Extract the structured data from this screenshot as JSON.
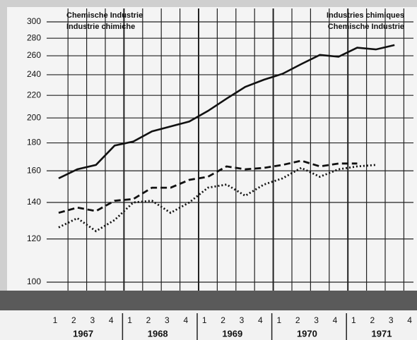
{
  "chart_data": {
    "type": "line",
    "titles": {
      "left": [
        "Chemische Industrie",
        "Industrie chimiche"
      ],
      "right": [
        "Industries chimiques",
        "Chemische Industrie"
      ]
    },
    "categories": [
      "1",
      "2",
      "3",
      "4",
      "1",
      "2",
      "3",
      "4",
      "1",
      "2",
      "3",
      "4",
      "1",
      "2",
      "3",
      "4",
      "1",
      "2",
      "3",
      "4"
    ],
    "years": [
      "1967",
      "1968",
      "1969",
      "1970",
      "1971"
    ],
    "log_scale": true,
    "grid": true,
    "ylim": [
      100,
      300
    ],
    "yticks": [
      100,
      120,
      140,
      160,
      180,
      200,
      220,
      240,
      260,
      280,
      300
    ],
    "series": [
      {
        "color": "#111111",
        "style": "solid",
        "values": [
          155,
          161,
          164,
          178,
          181,
          189,
          193,
          197,
          206,
          217,
          228,
          235,
          241,
          251,
          261,
          259,
          269,
          267,
          272,
          null
        ]
      },
      {
        "color": "#111111",
        "style": "dashed",
        "values": [
          134,
          137,
          135,
          141,
          142,
          149,
          149,
          154,
          156,
          163,
          161,
          162,
          164,
          167,
          163,
          165,
          165,
          null,
          null,
          null
        ]
      },
      {
        "color": "#111111",
        "style": "dotted",
        "values": [
          126,
          131,
          124,
          130,
          140,
          141,
          134,
          140,
          149,
          151,
          144,
          151,
          155,
          162,
          156,
          161,
          163,
          164,
          null,
          null
        ]
      }
    ]
  }
}
